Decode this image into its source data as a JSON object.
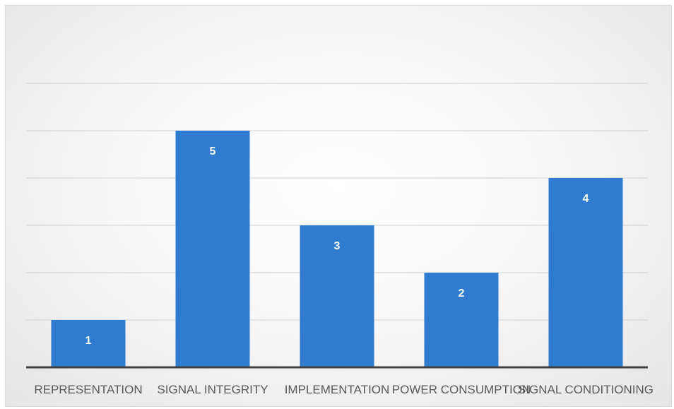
{
  "chart_data": {
    "type": "bar",
    "categories": [
      "REPRESENTATION",
      "SIGNAL INTEGRITY",
      "IMPLEMENTATION",
      "POWER CONSUMPTION",
      "SIGNAL CONDITIONING"
    ],
    "values": [
      1,
      5,
      3,
      2,
      4
    ],
    "ylim": [
      0,
      7
    ],
    "grid": true,
    "legend": "none",
    "bar_color": "#2E7BCF",
    "grid_color": "#d0d0d0",
    "axis_color": "#404040",
    "data_labels": true
  }
}
